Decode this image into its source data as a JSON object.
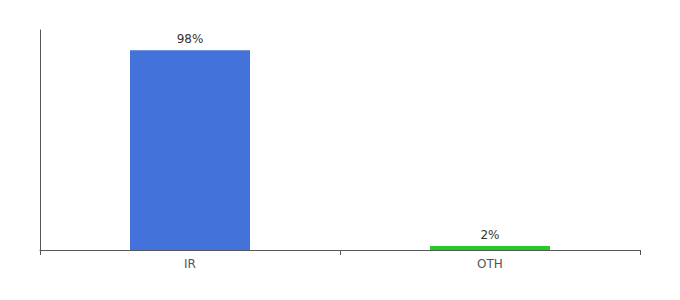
{
  "chart_data": {
    "type": "bar",
    "categories": [
      "IR",
      "OTH"
    ],
    "values": [
      98,
      2
    ],
    "colors": [
      "#4472db",
      "#22cc22"
    ],
    "value_labels": [
      "98%",
      "2%"
    ],
    "data_labels": true,
    "ylim": [
      0,
      108
    ],
    "yticks": [],
    "tick_labels": "x",
    "grid": false
  }
}
